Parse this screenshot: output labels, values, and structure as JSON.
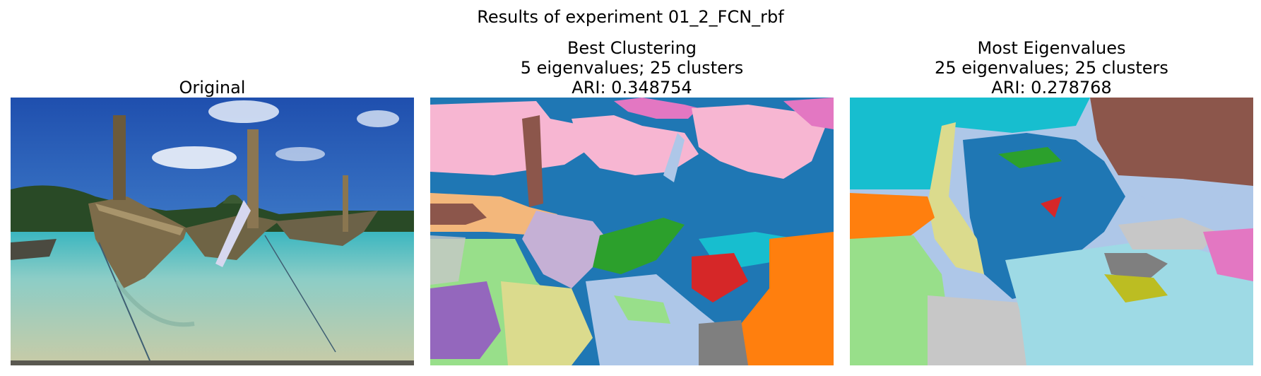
{
  "figure": {
    "suptitle": "Results of experiment 01_2_FCN_rbf"
  },
  "panels": [
    {
      "title_lines": [
        "Original"
      ],
      "image": "photo of three wooden long-tail boats on a beach with blue sky and turquoise water"
    },
    {
      "title_lines": [
        "Best Clustering",
        "5 eigenvalues; 25 clusters",
        "ARI: 0.348754"
      ],
      "image": "segmentation map of the boat photo, 25 clusters"
    },
    {
      "title_lines": [
        "Most Eigenvalues",
        "25 eigenvalues; 25 clusters",
        "ARI: 0.278768"
      ],
      "image": "segmentation map of the boat photo, 25 clusters"
    }
  ],
  "colors": {
    "sky_blue": "#2f6fc4",
    "water": "#a9cbc9",
    "tab_blue": "#1f77b4",
    "tab_pink": "#f7b6d2",
    "tab_magenta": "#e377c2",
    "tab_green": "#2ca02c",
    "tab_lightgreen": "#98df8a",
    "tab_red": "#d62728",
    "tab_orange": "#ff7f0e",
    "tab_lightorange": "#ffbb78",
    "tab_purple": "#9467bd",
    "tab_lightpurple": "#c5b0d5",
    "tab_brown": "#8c564b",
    "tab_cyan": "#17becf",
    "tab_lightcyan": "#9edae5",
    "tab_gray": "#7f7f7f",
    "tab_lightgray": "#c7c7c7",
    "tab_olive": "#bcbd22",
    "tab_lightolive": "#dbdb8d",
    "tab_lightblue": "#aec7e8"
  }
}
